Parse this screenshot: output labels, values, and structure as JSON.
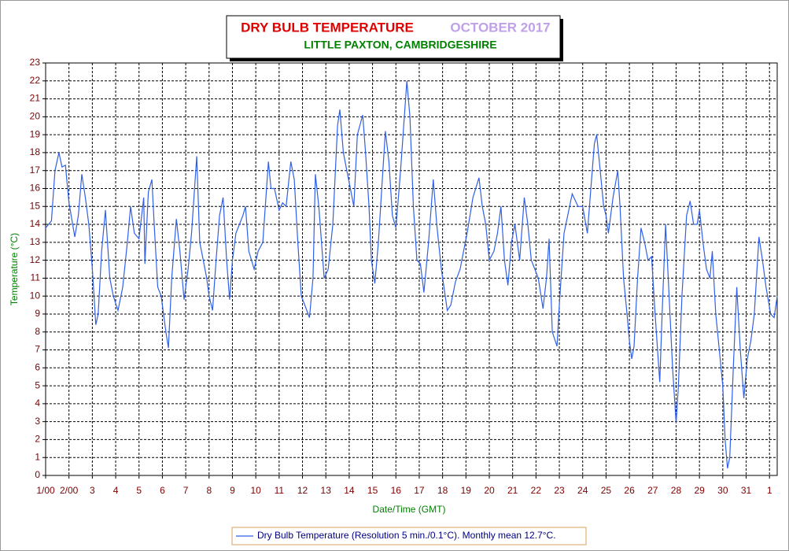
{
  "chart_data": {
    "type": "line",
    "title": "DRY BULB TEMPERATURE",
    "title_period": "OCTOBER 2017",
    "subtitle": "LITTLE PAXTON, CAMBRIDGESHIRE",
    "xlabel": "Date/Time (GMT)",
    "ylabel": "Temperature (°C)",
    "xlim": [
      1,
      32.33
    ],
    "ylim": [
      0,
      23
    ],
    "xticks": [
      {
        "value": 1,
        "label": "1/00"
      },
      {
        "value": 2,
        "label": "2/00"
      },
      3,
      4,
      5,
      6,
      7,
      8,
      9,
      10,
      11,
      12,
      13,
      14,
      15,
      16,
      17,
      18,
      19,
      20,
      21,
      22,
      23,
      24,
      25,
      26,
      27,
      28,
      29,
      30,
      31,
      {
        "value": 32,
        "label": "1"
      }
    ],
    "yticks": [
      0,
      1,
      2,
      3,
      4,
      5,
      6,
      7,
      8,
      9,
      10,
      11,
      12,
      13,
      14,
      15,
      16,
      17,
      18,
      19,
      20,
      21,
      22,
      23
    ],
    "grid": true,
    "x": [
      1.0,
      1.25,
      1.4,
      1.57,
      1.7,
      1.85,
      2.0,
      2.25,
      2.4,
      2.55,
      2.7,
      2.85,
      3.0,
      3.15,
      3.25,
      3.4,
      3.56,
      3.75,
      3.9,
      4.1,
      4.3,
      4.5,
      4.64,
      4.8,
      5.0,
      5.2,
      5.25,
      5.4,
      5.55,
      5.65,
      5.8,
      5.95,
      6.05,
      6.15,
      6.26,
      6.4,
      6.6,
      6.75,
      6.93,
      7.1,
      7.25,
      7.47,
      7.6,
      7.75,
      7.9,
      8.0,
      8.15,
      8.3,
      8.45,
      8.6,
      8.75,
      8.88,
      9.0,
      9.15,
      9.3,
      9.45,
      9.56,
      9.7,
      9.93,
      10.1,
      10.3,
      10.54,
      10.65,
      10.8,
      11.0,
      11.15,
      11.3,
      11.5,
      11.65,
      11.8,
      11.95,
      12.1,
      12.3,
      12.45,
      12.55,
      12.7,
      12.93,
      13.1,
      13.3,
      13.5,
      13.6,
      13.75,
      13.9,
      14.05,
      14.2,
      14.35,
      14.58,
      14.7,
      14.85,
      14.95,
      15.1,
      15.25,
      15.55,
      15.7,
      15.85,
      16.0,
      16.2,
      16.47,
      16.6,
      16.75,
      16.9,
      17.05,
      17.2,
      17.4,
      17.6,
      17.75,
      17.95,
      18.2,
      18.35,
      18.55,
      18.75,
      18.9,
      19.05,
      19.3,
      19.56,
      19.7,
      19.85,
      20.0,
      20.2,
      20.35,
      20.5,
      20.65,
      20.8,
      20.95,
      21.1,
      21.3,
      21.5,
      21.65,
      21.8,
      21.95,
      22.1,
      22.3,
      22.45,
      22.56,
      22.7,
      22.9,
      23.0,
      23.2,
      23.55,
      23.8,
      24.0,
      24.2,
      24.35,
      24.5,
      24.6,
      24.75,
      24.9,
      25.0,
      25.1,
      25.3,
      25.5,
      25.6,
      25.75,
      25.9,
      26.0,
      26.1,
      26.2,
      26.35,
      26.5,
      26.65,
      26.8,
      26.95,
      27.1,
      27.3,
      27.4,
      27.55,
      27.7,
      27.85,
      28.0,
      28.1,
      28.25,
      28.45,
      28.6,
      28.75,
      28.9,
      29.0,
      29.15,
      29.3,
      29.45,
      29.55,
      29.7,
      29.85,
      30.0,
      30.1,
      30.2,
      30.3,
      30.45,
      30.6,
      30.75,
      30.9,
      31.05,
      31.2,
      31.35,
      31.55,
      31.7,
      31.85,
      32.05,
      32.2,
      32.33
    ],
    "series": [
      {
        "name": "Dry Bulb Temperature (Resolution 5 min./0.1°C). Monthly mean 12.7°C.",
        "color": "#3060e8",
        "values": [
          13.8,
          14.2,
          17.0,
          18.0,
          17.2,
          17.3,
          15.2,
          13.3,
          14.5,
          16.8,
          15.5,
          14.0,
          11.5,
          8.4,
          9.0,
          12.5,
          14.8,
          11.0,
          10.0,
          9.2,
          10.5,
          13.0,
          15.0,
          13.5,
          13.2,
          15.5,
          11.8,
          15.8,
          16.5,
          14.0,
          10.5,
          10.0,
          9.0,
          8.0,
          7.1,
          11.0,
          14.3,
          12.5,
          9.8,
          11.5,
          13.5,
          17.8,
          13.0,
          12.0,
          11.0,
          10.0,
          9.2,
          12.0,
          14.5,
          15.5,
          12.0,
          9.8,
          12.0,
          13.5,
          14.0,
          14.5,
          15.0,
          12.5,
          11.5,
          12.5,
          13.0,
          17.5,
          16.0,
          16.0,
          14.8,
          15.2,
          15.0,
          17.5,
          16.5,
          13.0,
          10.0,
          9.5,
          8.8,
          11.0,
          16.8,
          15.0,
          11.0,
          11.5,
          14.0,
          19.5,
          20.4,
          18.0,
          17.0,
          16.0,
          15.0,
          19.0,
          20.1,
          18.0,
          15.0,
          12.0,
          10.7,
          13.0,
          19.2,
          17.5,
          14.5,
          13.8,
          17.0,
          22.0,
          20.0,
          15.0,
          12.0,
          11.8,
          10.2,
          13.0,
          16.5,
          14.0,
          11.5,
          9.2,
          9.5,
          10.8,
          11.5,
          12.5,
          13.5,
          15.5,
          16.6,
          15.0,
          14.0,
          12.0,
          12.5,
          13.5,
          15.0,
          12.0,
          10.6,
          13.0,
          14.0,
          12.0,
          15.5,
          14.0,
          12.0,
          11.5,
          11.0,
          9.3,
          11.0,
          13.2,
          8.0,
          7.2,
          9.5,
          13.5,
          15.7,
          15.0,
          15.0,
          13.5,
          16.0,
          18.5,
          19.0,
          17.0,
          15.0,
          14.5,
          13.5,
          15.5,
          17.0,
          15.0,
          11.0,
          9.0,
          7.5,
          6.5,
          7.2,
          11.0,
          13.8,
          13.0,
          12.0,
          12.2,
          9.0,
          5.2,
          9.0,
          14.0,
          10.0,
          6.0,
          2.9,
          5.0,
          10.0,
          14.5,
          15.3,
          14.0,
          14.0,
          14.8,
          13.0,
          11.5,
          11.0,
          12.5,
          9.0,
          7.0,
          5.0,
          2.0,
          0.4,
          1.0,
          6.0,
          10.5,
          7.0,
          4.3,
          6.5,
          7.5,
          9.0,
          13.3,
          12.0,
          10.5,
          9.0,
          8.8,
          10.0
        ]
      }
    ]
  }
}
